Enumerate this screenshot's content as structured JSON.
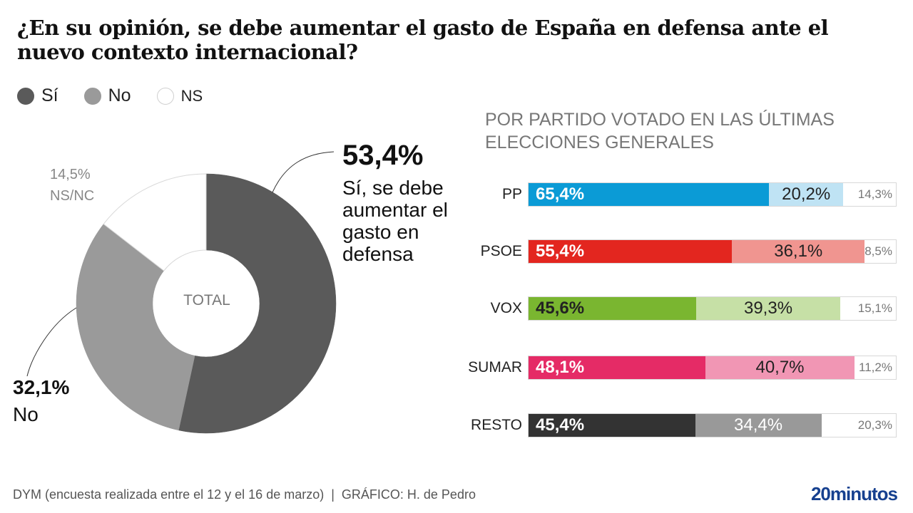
{
  "title": "¿En su opinión, se debe aumentar el gasto de España en defensa ante el nuevo contexto internacional?",
  "legend": [
    {
      "label": "Sí",
      "color": "#5a5a5a",
      "border": "#5a5a5a"
    },
    {
      "label": "No",
      "color": "#9a9a9a",
      "border": "#9a9a9a"
    },
    {
      "label": "NS",
      "color": "#ffffff",
      "border": "#d0d0d0"
    }
  ],
  "footer": {
    "source": "DYM (encuesta realizada entre el 12 y el 16 de marzo)  |  GRÁFICO: H. de Pedro",
    "logo": "20minutos"
  },
  "chart_data": [
    {
      "type": "pie",
      "variant": "donut",
      "center_label": "TOTAL",
      "categories": [
        "Sí",
        "No",
        "NS/NC"
      ],
      "values": [
        53.4,
        32.1,
        14.5
      ],
      "colors": [
        "#5a5a5a",
        "#9a9a9a",
        "#ffffff"
      ],
      "labels": {
        "si": {
          "pct": "53,4%",
          "text": "Sí, se debe aumentar el gasto en defensa"
        },
        "no": {
          "pct": "32,1%",
          "text": "No"
        },
        "ns": {
          "pct": "14,5%",
          "text": "NS/NC"
        }
      }
    },
    {
      "type": "bar",
      "orientation": "horizontal",
      "stacked": true,
      "title": "POR PARTIDO VOTADO EN LAS ÚLTIMAS ELECCIONES GENERALES",
      "categories": [
        "PP",
        "PSOE",
        "VOX",
        "SUMAR",
        "RESTO"
      ],
      "series": [
        {
          "name": "Sí",
          "values": [
            65.4,
            55.4,
            45.6,
            48.1,
            45.4
          ],
          "labels": [
            "65,4%",
            "55,4%",
            "45,6%",
            "48,1%",
            "45,4%"
          ]
        },
        {
          "name": "No",
          "values": [
            20.2,
            36.1,
            39.3,
            40.7,
            34.4
          ],
          "labels": [
            "20,2%",
            "36,1%",
            "39,3%",
            "40,7%",
            "34,4%"
          ]
        },
        {
          "name": "NS",
          "values": [
            14.3,
            8.5,
            15.1,
            11.2,
            20.3
          ],
          "labels": [
            "14,3%",
            "8,5%",
            "15,1%",
            "11,2%",
            "20,3%"
          ]
        }
      ],
      "colors": [
        {
          "yes": "#0b9bd6",
          "no": "#bfe3f4",
          "yes_text": "#ffffff",
          "no_text": "#222222"
        },
        {
          "yes": "#e3261f",
          "no": "#f09590",
          "yes_text": "#ffffff",
          "no_text": "#222222"
        },
        {
          "yes": "#7ab630",
          "no": "#c6e0a6",
          "yes_text": "#222222",
          "no_text": "#222222"
        },
        {
          "yes": "#e52b66",
          "no": "#f196b4",
          "yes_text": "#ffffff",
          "no_text": "#222222"
        },
        {
          "yes": "#333333",
          "no": "#999999",
          "yes_text": "#ffffff",
          "no_text": "#ffffff"
        }
      ],
      "xlim": [
        0,
        100
      ]
    }
  ]
}
